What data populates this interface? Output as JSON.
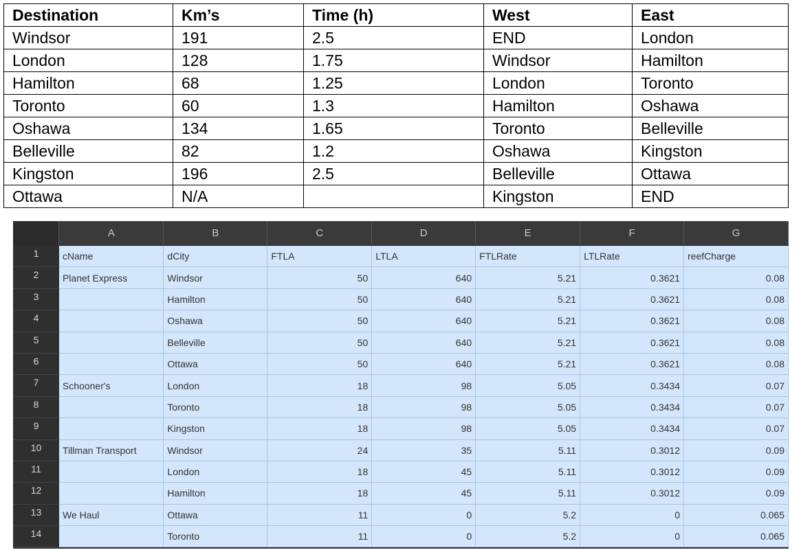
{
  "route_table": {
    "headers": [
      "Destination",
      "Km’s",
      "Time (h)",
      "West",
      "East"
    ],
    "rows": [
      [
        "Windsor",
        "191",
        "2.5",
        "END",
        "London"
      ],
      [
        "London",
        "128",
        "1.75",
        "Windsor",
        "Hamilton"
      ],
      [
        "Hamilton",
        "68",
        "1.25",
        "London",
        "Toronto"
      ],
      [
        "Toronto",
        "60",
        "1.3",
        "Hamilton",
        "Oshawa"
      ],
      [
        "Oshawa",
        "134",
        "1.65",
        "Toronto",
        "Belleville"
      ],
      [
        "Belleville",
        "82",
        "1.2",
        "Oshawa",
        "Kingston"
      ],
      [
        "Kingston",
        "196",
        "2.5",
        "Belleville",
        "Ottawa"
      ],
      [
        "Ottawa",
        "N/A",
        "",
        "Kingston",
        "END"
      ]
    ]
  },
  "spreadsheet": {
    "column_letters": [
      "A",
      "B",
      "C",
      "D",
      "E",
      "F",
      "G"
    ],
    "row_numbers": [
      "1",
      "2",
      "3",
      "4",
      "5",
      "6",
      "7",
      "8",
      "9",
      "10",
      "11",
      "12",
      "13",
      "14"
    ],
    "rows": [
      [
        "cName",
        "dCity",
        "FTLA",
        "LTLA",
        "FTLRate",
        "LTLRate",
        "reefCharge"
      ],
      [
        "Planet Express",
        "Windsor",
        "50",
        "640",
        "5.21",
        "0.3621",
        "0.08"
      ],
      [
        "",
        "Hamilton",
        "50",
        "640",
        "5.21",
        "0.3621",
        "0.08"
      ],
      [
        "",
        "Oshawa",
        "50",
        "640",
        "5.21",
        "0.3621",
        "0.08"
      ],
      [
        "",
        "Belleville",
        "50",
        "640",
        "5.21",
        "0.3621",
        "0.08"
      ],
      [
        "",
        "Ottawa",
        "50",
        "640",
        "5.21",
        "0.3621",
        "0.08"
      ],
      [
        "Schooner's",
        "London",
        "18",
        "98",
        "5.05",
        "0.3434",
        "0.07"
      ],
      [
        "",
        "Toronto",
        "18",
        "98",
        "5.05",
        "0.3434",
        "0.07"
      ],
      [
        "",
        "Kingston",
        "18",
        "98",
        "5.05",
        "0.3434",
        "0.07"
      ],
      [
        "Tillman Transport",
        "Windsor",
        "24",
        "35",
        "5.11",
        "0.3012",
        "0.09"
      ],
      [
        "",
        "London",
        "18",
        "45",
        "5.11",
        "0.3012",
        "0.09"
      ],
      [
        "",
        "Hamilton",
        "18",
        "45",
        "5.11",
        "0.3012",
        "0.09"
      ],
      [
        "We Haul",
        "Ottawa",
        "11",
        "0",
        "5.2",
        "0",
        "0.065"
      ],
      [
        "",
        "Toronto",
        "11",
        "0",
        "5.2",
        "0",
        "0.065"
      ]
    ]
  },
  "colors": {
    "selected_cell_bg": "#d3e6fb",
    "sheet_header_bg": "#3a3a3a"
  }
}
